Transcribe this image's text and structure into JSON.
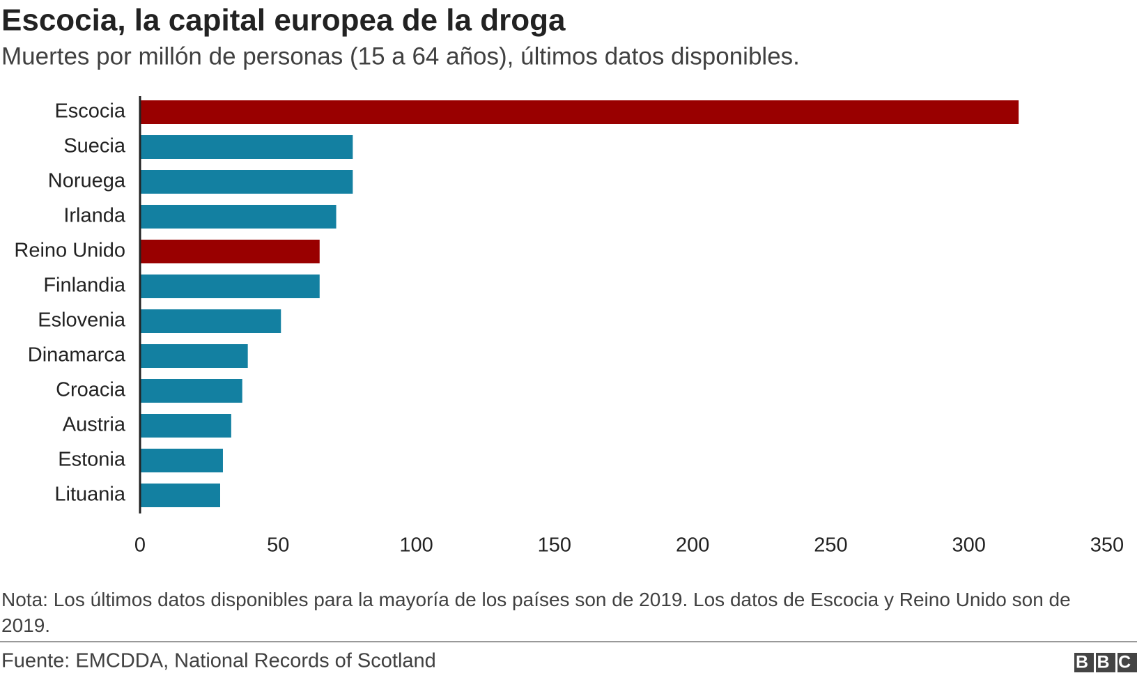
{
  "chart_data": {
    "type": "bar",
    "orientation": "horizontal",
    "title": "Escocia, la capital europea de la droga",
    "subtitle": "Muertes por millón de personas (15 a 64 años), últimos datos disponibles.",
    "categories": [
      "Escocia",
      "Suecia",
      "Noruega",
      "Irlanda",
      "Reino Unido",
      "Finlandia",
      "Eslovenia",
      "Dinamarca",
      "Croacia",
      "Austria",
      "Estonia",
      "Lituania"
    ],
    "values": [
      318,
      77,
      77,
      71,
      65,
      65,
      51,
      39,
      37,
      33,
      30,
      29
    ],
    "colors": [
      "#990000",
      "#1380a1",
      "#1380a1",
      "#1380a1",
      "#990000",
      "#1380a1",
      "#1380a1",
      "#1380a1",
      "#1380a1",
      "#1380a1",
      "#1380a1",
      "#1380a1"
    ],
    "xlim": [
      0,
      350
    ],
    "xticks": [
      0,
      50,
      100,
      150,
      200,
      250,
      300,
      350
    ],
    "grid": false,
    "note": "Nota: Los últimos datos disponibles para la mayoría de los países son de 2019. Los datos de Escocia y Reino Unido son de 2019.",
    "source": "Fuente: EMCDDA, National Records of Scotland",
    "logo": "BBC"
  }
}
